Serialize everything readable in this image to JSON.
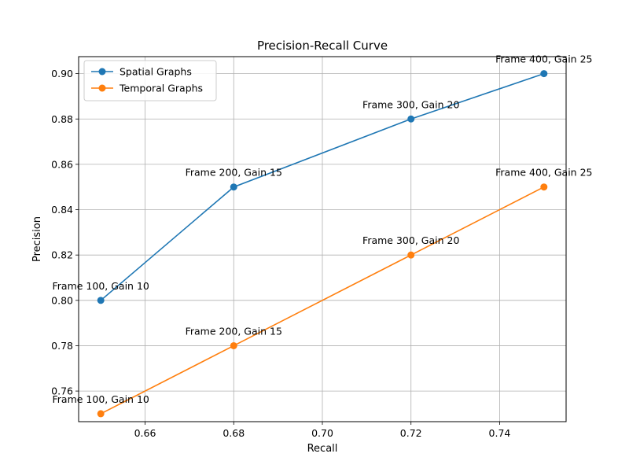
{
  "chart_data": {
    "type": "line",
    "title": "Precision-Recall Curve",
    "xlabel": "Recall",
    "ylabel": "Precision",
    "xlim": [
      0.645,
      0.755
    ],
    "ylim": [
      0.7465,
      0.9075
    ],
    "xticks": [
      "0.66",
      "0.68",
      "0.70",
      "0.72",
      "0.74"
    ],
    "yticks": [
      "0.76",
      "0.78",
      "0.80",
      "0.82",
      "0.84",
      "0.86",
      "0.88",
      "0.90"
    ],
    "grid": true,
    "legend_position": "top-left",
    "series": [
      {
        "name": "Spatial Graphs",
        "color": "#1f77b4",
        "x": [
          0.65,
          0.68,
          0.72,
          0.75
        ],
        "y": [
          0.8,
          0.85,
          0.88,
          0.9
        ],
        "annotations": [
          "Frame 100, Gain 10",
          "Frame 200, Gain 15",
          "Frame 300, Gain 20",
          "Frame 400, Gain 25"
        ]
      },
      {
        "name": "Temporal Graphs",
        "color": "#ff7f0e",
        "x": [
          0.65,
          0.68,
          0.72,
          0.75
        ],
        "y": [
          0.75,
          0.78,
          0.82,
          0.85
        ],
        "annotations": [
          "Frame 100, Gain 10",
          "Frame 200, Gain 15",
          "Frame 300, Gain 20",
          "Frame 400, Gain 25"
        ]
      }
    ]
  }
}
